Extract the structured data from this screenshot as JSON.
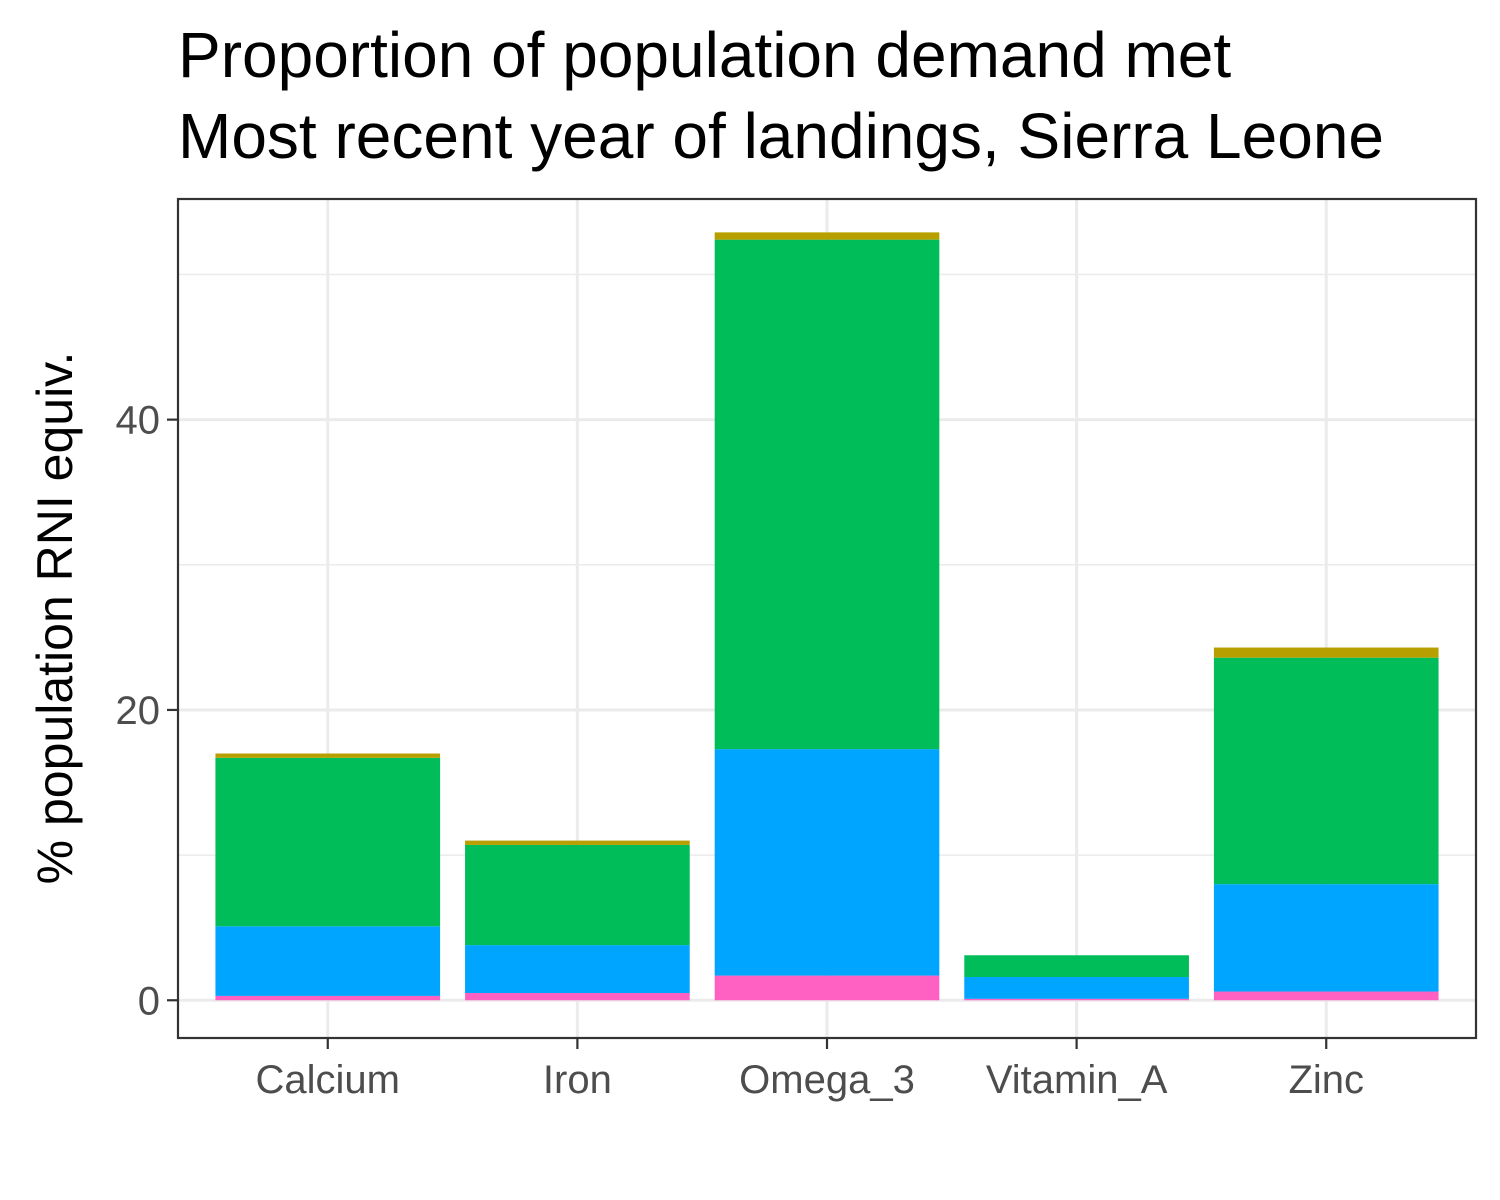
{
  "chart_data": {
    "type": "bar",
    "stacked": true,
    "title": "Proportion of population demand met",
    "subtitle": "Most recent year of landings, Sierra Leone",
    "xlabel": "",
    "ylabel": "% population RNI equiv.",
    "categories": [
      "Calcium",
      "Iron",
      "Omega_3",
      "Vitamin_A",
      "Zinc"
    ],
    "ylim": [
      -2.6,
      55.2
    ],
    "yticks": [
      0,
      20,
      40
    ],
    "grid": true,
    "legend": "none",
    "series": [
      {
        "color": "#ff61c3",
        "values": [
          0.3,
          0.5,
          1.7,
          0.1,
          0.6
        ]
      },
      {
        "color": "#00a5ff",
        "values": [
          4.8,
          3.3,
          15.6,
          1.5,
          7.4
        ]
      },
      {
        "color": "#00bc59",
        "values": [
          11.6,
          6.9,
          35.1,
          1.5,
          15.6
        ]
      },
      {
        "color": "#b79f00",
        "values": [
          0.3,
          0.3,
          0.5,
          0.0,
          0.7
        ]
      }
    ]
  }
}
